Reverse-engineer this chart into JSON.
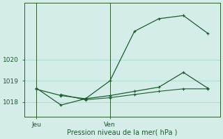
{
  "background_color": "#d4ede8",
  "grid_color": "#a8d8cc",
  "line_color": "#1a5c2e",
  "axis_color": "#2d5a2d",
  "tick_label_color": "#1a5c2e",
  "xlabel": "Pression niveau de la mer( hPa )",
  "xtick_positions": [
    0,
    3
  ],
  "xtick_labels": [
    "Jeu",
    "Ven"
  ],
  "ylim": [
    1017.3,
    1022.7
  ],
  "yticks": [
    1018,
    1019,
    1020
  ],
  "line1_x": [
    0,
    1,
    2,
    3,
    4,
    5,
    6,
    7
  ],
  "line1_y": [
    1018.65,
    1017.85,
    1018.15,
    1019.0,
    1021.35,
    1021.95,
    1022.1,
    1021.25
  ],
  "line2_x": [
    0,
    1,
    2,
    3,
    4,
    5,
    6,
    7
  ],
  "line2_y": [
    1018.6,
    1018.3,
    1018.15,
    1018.3,
    1018.5,
    1018.7,
    1019.4,
    1018.65
  ],
  "line3_x": [
    1,
    2,
    3,
    4,
    5,
    6,
    7
  ],
  "line3_y": [
    1018.35,
    1018.1,
    1018.2,
    1018.35,
    1018.5,
    1018.62,
    1018.62
  ],
  "xlim": [
    -0.5,
    7.5
  ],
  "jeu_x": 0,
  "ven_x": 3,
  "figsize": [
    3.2,
    2.0
  ],
  "dpi": 100
}
